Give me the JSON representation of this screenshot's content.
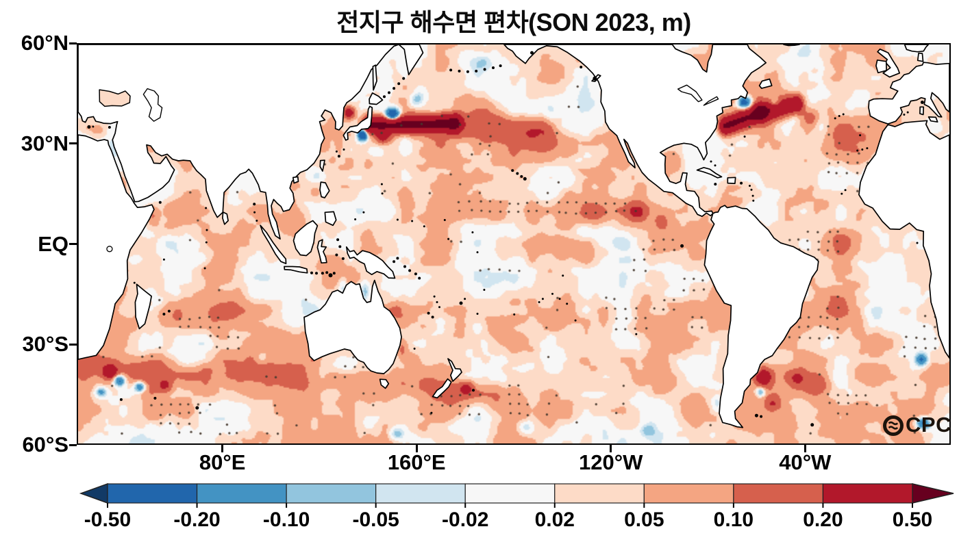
{
  "chart_data": {
    "type": "heatmap",
    "title": "전지구 해수면 편차(SON 2023, m)",
    "variable": "global sea level anomaly",
    "period": "SON 2023",
    "units": "m",
    "projection": "equirectangular",
    "lon_range": [
      20,
      380
    ],
    "lat_range": [
      -60,
      60
    ],
    "x_ticks": [
      {
        "lon": 80,
        "label": "80°E"
      },
      {
        "lon": 160,
        "label": "160°E"
      },
      {
        "lon": 240,
        "label": "120°W"
      },
      {
        "lon": 320,
        "label": "40°W"
      }
    ],
    "y_ticks": [
      {
        "lat": 60,
        "label": "60°N"
      },
      {
        "lat": 30,
        "label": "30°N"
      },
      {
        "lat": 0,
        "label": "EQ"
      },
      {
        "lat": -30,
        "label": "30°S"
      },
      {
        "lat": -60,
        "label": "60°S"
      }
    ],
    "colorbar": {
      "levels": [
        -0.5,
        -0.2,
        -0.1,
        -0.05,
        -0.02,
        0.02,
        0.05,
        0.1,
        0.2,
        0.5
      ],
      "labels": [
        "-0.50",
        "-0.20",
        "-0.10",
        "-0.05",
        "-0.02",
        "0.02",
        "0.05",
        "0.10",
        "0.20",
        "0.50"
      ],
      "colors": [
        "#2166ac",
        "#4393c3",
        "#92c5de",
        "#d1e5f0",
        "#f7f7f7",
        "#fddbc7",
        "#f4a582",
        "#d6604d",
        "#b2182b"
      ],
      "under_color": "#123a66",
      "over_color": "#67001f",
      "outline_color": "#222222"
    },
    "logo": "OCPC",
    "land_color": "#ffffff",
    "coast_color": "#000000",
    "stipple_color": "#46392f",
    "background_bias": 0.033,
    "noise_amps": [
      0.048,
      0.026,
      0.014
    ],
    "noise_seeds": [
      11,
      23,
      47
    ],
    "feature_format": {
      "bands": "[lon0,lat0,lon1,lat1,amplitude_m,sigma_deg]",
      "spots": "[lon,lat,amplitude_m,sigma_lon_deg,sigma_lat_deg]",
      "stipple_boxes": "[lon0,lat0,lon1,lat1,noise_keep_threshold]"
    },
    "features": {
      "bands": [
        [
          140,
          35.8,
          176,
          36.3,
          0.55,
          1.7
        ],
        [
          176,
          36,
          212,
          33.5,
          0.13,
          3
        ],
        [
          287.5,
          35.5,
          302,
          39.5,
          0.5,
          1.7
        ],
        [
          302,
          39.5,
          317,
          42,
          0.42,
          1.8
        ],
        [
          168,
          9.8,
          252,
          10.2,
          0.06,
          2.6
        ],
        [
          24,
          -37.5,
          72,
          -39.5,
          0.1,
          2.8
        ],
        [
          84,
          -38,
          142,
          -43,
          0.06,
          3
        ],
        [
          148,
          -42,
          192,
          -46,
          0.07,
          3
        ],
        [
          46,
          -22,
          102,
          -20,
          0.055,
          3
        ],
        [
          200,
          29,
          242,
          33,
          0.04,
          3.5
        ],
        [
          318,
          18,
          348,
          33,
          0.04,
          5
        ],
        [
          333,
          35,
          354,
          38,
          0.045,
          2.8
        ],
        [
          312,
          -24,
          334,
          -19,
          0.05,
          3
        ]
      ],
      "spots": [
        [
          150,
          38.8,
          -0.5,
          2,
          1.3
        ],
        [
          137.6,
          32.8,
          -0.5,
          1.3,
          1.1
        ],
        [
          146,
          32.5,
          0.28,
          2,
          1.4
        ],
        [
          132,
          39.5,
          0.3,
          1.6,
          1.2
        ],
        [
          160,
          43.5,
          -0.1,
          2,
          1.5
        ],
        [
          186,
          54.5,
          -0.07,
          3,
          1.8
        ],
        [
          295.3,
          42.6,
          -0.35,
          1.8,
          1.2
        ],
        [
          308,
          42.3,
          -0.18,
          1.5,
          1
        ],
        [
          284.8,
          42.5,
          -0.22,
          1.3,
          0.9
        ],
        [
          251,
          9.6,
          0.17,
          3,
          1.8
        ],
        [
          261,
          6.5,
          0.1,
          2.5,
          2
        ],
        [
          79,
          16,
          0.11,
          1.6,
          1.3
        ],
        [
          38,
          17,
          0.1,
          1.5,
          2
        ],
        [
          51,
          8,
          0.07,
          1.8,
          2.2
        ],
        [
          75,
          -9,
          0.06,
          5,
          2.5
        ],
        [
          37,
          -41,
          -0.28,
          1.6,
          1.1
        ],
        [
          45.5,
          -43,
          -0.22,
          1.6,
          1.1
        ],
        [
          29.5,
          -44.5,
          -0.16,
          1.5,
          1
        ],
        [
          33,
          -38.5,
          0.3,
          2,
          1.4
        ],
        [
          56,
          -42.5,
          0.18,
          2,
          1.4
        ],
        [
          303,
          -40,
          0.28,
          2.4,
          1.8
        ],
        [
          299.6,
          -37.6,
          -0.28,
          1.3,
          0.9
        ],
        [
          302,
          -44.5,
          -0.18,
          1.4,
          1
        ],
        [
          307,
          -48,
          0.14,
          2,
          1.4
        ],
        [
          317,
          -40.5,
          0.16,
          2.5,
          1.8
        ],
        [
          325,
          -43,
          0.12,
          3.5,
          2.2
        ],
        [
          288,
          -52.5,
          -0.14,
          1.5,
          0.9
        ],
        [
          284,
          -48,
          -0.07,
          1.5,
          2
        ],
        [
          283,
          -10,
          0.05,
          1.5,
          3
        ],
        [
          368.5,
          -34.8,
          -0.26,
          1.7,
          1.2
        ],
        [
          369,
          -54,
          -0.28,
          1.9,
          1.2
        ],
        [
          180.5,
          -43.5,
          0.18,
          2,
          1.4
        ],
        [
          119,
          20.5,
          -0.05,
          2,
          1.5
        ],
        [
          113,
          13,
          -0.04,
          2.5,
          2.5
        ],
        [
          138.5,
          -14.5,
          -0.1,
          1.4,
          2.6
        ],
        [
          129.5,
          -13,
          -0.07,
          1.2,
          2.4
        ],
        [
          143,
          28,
          -0.04,
          3,
          1.8
        ],
        [
          152,
          -20,
          0.07,
          3,
          2.6
        ],
        [
          154,
          -32,
          0.1,
          1.6,
          2.2
        ],
        [
          158,
          -35,
          0.07,
          2.4,
          2
        ],
        [
          205,
          -55,
          -0.1,
          2.4,
          1.4
        ],
        [
          255,
          -56,
          -0.09,
          2.4,
          1.4
        ],
        [
          152,
          -57,
          -0.1,
          2.4,
          1.4
        ],
        [
          265,
          25,
          0.05,
          3,
          2
        ],
        [
          340,
          0,
          0.045,
          6,
          3
        ],
        [
          28,
          34,
          0.04,
          3,
          1.5
        ],
        [
          96,
          -34,
          -0.07,
          1.8,
          1.3
        ],
        [
          322,
          38,
          0.12,
          2.5,
          2
        ],
        [
          234,
          9,
          0.06,
          4,
          2
        ],
        [
          198,
          4,
          -0.04,
          8,
          1.8
        ],
        [
          230,
          3,
          -0.04,
          9,
          2
        ]
      ],
      "stipple_boxes": [
        [
          327,
          14,
          352,
          38,
          -0.35
        ],
        [
          313,
          -30,
          335,
          6,
          0.05
        ],
        [
          175,
          8.6,
          252,
          13.2,
          -0.5
        ],
        [
          237,
          -26,
          281,
          -7,
          0.1
        ],
        [
          186,
          -9,
          202,
          -5,
          -0.3
        ],
        [
          43,
          -34,
          89,
          -16,
          0.05
        ],
        [
          158,
          -54,
          206,
          -41,
          0.1
        ],
        [
          36,
          -58,
          102,
          -46,
          0.1
        ],
        [
          292,
          43.5,
          311,
          47.5,
          0.05
        ],
        [
          330,
          -57,
          353,
          -44,
          0.1
        ],
        [
          355,
          -36,
          379,
          -21,
          0.1
        ],
        [
          190,
          27,
          214,
          37,
          0.35
        ],
        [
          129,
          33,
          162,
          44,
          0.4
        ],
        [
          112,
          -40,
          152,
          -30,
          0.45
        ],
        [
          246,
          -6,
          266,
          2,
          0.35
        ]
      ]
    }
  }
}
